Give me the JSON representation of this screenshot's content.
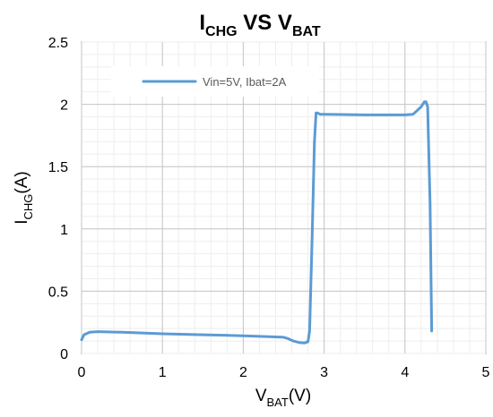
{
  "chart_data": {
    "type": "line",
    "title": {
      "main1": "I",
      "sub1": "CHG",
      "mid": " VS V",
      "sub2": "BAT"
    },
    "xlabel": {
      "main": "V",
      "sub": "BAT",
      "suffix": "(V)"
    },
    "ylabel": {
      "main": "I",
      "sub": "CHG",
      "suffix": "(A)"
    },
    "xlim": [
      0,
      5
    ],
    "ylim": [
      0,
      2.5
    ],
    "xticks": [
      "0",
      "1",
      "2",
      "3",
      "4",
      "5"
    ],
    "yticks": [
      "0",
      "0.5",
      "1",
      "1.5",
      "2",
      "2.5"
    ],
    "grid": true,
    "legend_position": "top-left",
    "line_color": "#5B9BD5",
    "series": [
      {
        "name": "Vin=5V, Ibat=2A",
        "x": [
          0.0,
          0.03,
          0.1,
          0.2,
          0.5,
          1.0,
          1.5,
          2.0,
          2.4,
          2.5,
          2.55,
          2.62,
          2.7,
          2.76,
          2.8,
          2.82,
          2.85,
          2.88,
          2.9,
          2.92,
          2.95,
          3.0,
          3.5,
          4.0,
          4.1,
          4.15,
          4.2,
          4.24,
          4.26,
          4.28,
          4.31,
          4.33
        ],
        "y": [
          0.11,
          0.15,
          0.17,
          0.175,
          0.17,
          0.158,
          0.15,
          0.142,
          0.133,
          0.13,
          0.12,
          0.1,
          0.087,
          0.085,
          0.095,
          0.18,
          0.9,
          1.7,
          1.93,
          1.93,
          1.92,
          1.92,
          1.915,
          1.915,
          1.92,
          1.95,
          1.98,
          2.02,
          2.02,
          1.98,
          1.2,
          0.18
        ]
      }
    ]
  }
}
